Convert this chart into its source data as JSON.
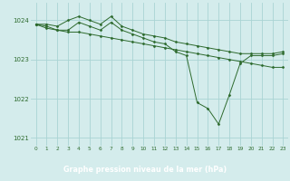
{
  "hours": [
    0,
    1,
    2,
    3,
    4,
    5,
    6,
    7,
    8,
    9,
    10,
    11,
    12,
    13,
    14,
    15,
    16,
    17,
    18,
    19,
    20,
    21,
    22,
    23
  ],
  "line1": [
    1023.9,
    1023.9,
    1023.85,
    1024.0,
    1024.1,
    1024.0,
    1023.9,
    1024.1,
    1023.85,
    1023.75,
    1023.65,
    1023.6,
    1023.55,
    1023.45,
    1023.4,
    1023.35,
    1023.3,
    1023.25,
    1023.2,
    1023.15,
    1023.15,
    1023.15,
    1023.15,
    1023.2
  ],
  "line2": [
    1023.9,
    1023.85,
    1023.75,
    1023.75,
    1023.95,
    1023.85,
    1023.75,
    1023.95,
    1023.75,
    1023.65,
    1023.55,
    1023.45,
    1023.4,
    1023.2,
    1023.1,
    1021.9,
    1021.75,
    1021.35,
    1022.1,
    1022.9,
    1023.1,
    1023.1,
    1023.1,
    1023.15
  ],
  "line3": [
    1023.9,
    1023.8,
    1023.75,
    1023.7,
    1023.7,
    1023.65,
    1023.6,
    1023.55,
    1023.5,
    1023.45,
    1023.4,
    1023.35,
    1023.3,
    1023.25,
    1023.2,
    1023.15,
    1023.1,
    1023.05,
    1023.0,
    1022.95,
    1022.9,
    1022.85,
    1022.8,
    1022.8
  ],
  "line_color": "#2d6a2d",
  "bg_color": "#d4ecec",
  "grid_color": "#aad4d4",
  "xlabel": "Graphe pression niveau de la mer (hPa)",
  "xlabel_color": "#ffffff",
  "xlabel_bg": "#3a8c3a",
  "tick_color": "#2d6a2d",
  "ylim": [
    1020.8,
    1024.45
  ],
  "yticks": [
    1021,
    1022,
    1023,
    1024
  ],
  "xticks": [
    0,
    1,
    2,
    3,
    4,
    5,
    6,
    7,
    8,
    9,
    10,
    11,
    12,
    13,
    14,
    15,
    16,
    17,
    18,
    19,
    20,
    21,
    22,
    23
  ]
}
